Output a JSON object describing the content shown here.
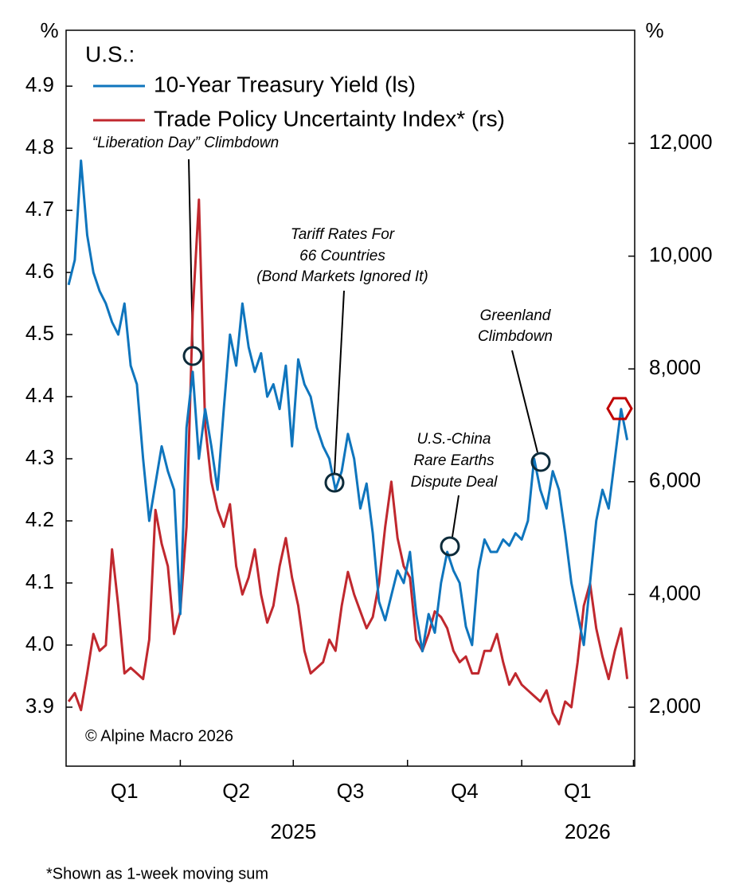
{
  "chart_data": {
    "type": "line",
    "legend_header": "U.S.:",
    "left_unit": "%",
    "right_unit": "%",
    "credit": "© Alpine Macro 2026",
    "footnote": "*Shown as 1-week moving sum",
    "x": [
      0,
      5,
      10,
      15,
      20,
      25,
      30,
      35,
      40,
      45,
      50,
      55,
      60,
      65,
      70,
      75,
      80,
      85,
      90,
      95,
      100,
      105,
      110,
      115,
      120,
      125,
      130,
      135,
      140,
      145,
      150,
      155,
      160,
      165,
      170,
      175,
      180,
      185,
      190,
      195,
      200,
      205,
      210,
      215,
      220,
      225,
      230,
      235,
      240,
      245,
      250,
      255,
      260,
      265,
      270,
      275,
      280,
      285,
      290,
      295,
      300,
      305,
      310,
      315,
      320,
      325,
      330,
      335,
      340,
      345,
      350,
      355,
      360,
      365,
      370,
      375,
      380,
      385,
      390,
      395,
      400,
      405,
      410,
      415,
      420,
      425,
      430,
      435,
      440,
      445,
      450
    ],
    "xlim": [
      -2,
      456
    ],
    "xticks": [
      90,
      181,
      273,
      365,
      455
    ],
    "x_labels": [
      {
        "value": 45,
        "label": "Q1"
      },
      {
        "value": 135,
        "label": "Q2"
      },
      {
        "value": 227,
        "label": "Q3"
      },
      {
        "value": 319,
        "label": "Q4"
      },
      {
        "value": 410,
        "label": "Q1"
      }
    ],
    "year_labels": [
      {
        "value": 181,
        "label": "2025"
      },
      {
        "value": 418,
        "label": "2026"
      }
    ],
    "ylim": [
      3.805,
      4.99
    ],
    "yticks": [
      3.9,
      {
        "value": 4,
        "label": "4.0"
      },
      4.1,
      4.2,
      4.3,
      4.4,
      4.5,
      4.6,
      4.7,
      4.8,
      4.9
    ],
    "y2lim": [
      955,
      14006
    ],
    "y2ticks": [
      {
        "value": 2000,
        "label": "2,000"
      },
      {
        "value": 4000,
        "label": "4,000"
      },
      {
        "value": 6000,
        "label": "6,000"
      },
      {
        "value": 8000,
        "label": "8,000"
      },
      {
        "value": 10000,
        "label": "10,000"
      },
      {
        "value": 12000,
        "label": "12,000"
      }
    ],
    "series": [
      {
        "name": "10-Year Treasury Yield (ls)",
        "color": "#0f75bd",
        "values": [
          4.58,
          4.62,
          4.78,
          4.66,
          4.6,
          4.57,
          4.55,
          4.52,
          4.5,
          4.55,
          4.45,
          4.42,
          4.3,
          4.2,
          4.26,
          4.32,
          4.28,
          4.25,
          4.05,
          4.35,
          4.44,
          4.3,
          4.38,
          4.32,
          4.25,
          4.38,
          4.5,
          4.45,
          4.55,
          4.48,
          4.44,
          4.47,
          4.4,
          4.42,
          4.38,
          4.45,
          4.32,
          4.46,
          4.42,
          4.4,
          4.35,
          4.32,
          4.3,
          4.25,
          4.28,
          4.34,
          4.3,
          4.22,
          4.26,
          4.18,
          4.07,
          4.04,
          4.08,
          4.12,
          4.1,
          4.15,
          4.05,
          3.99,
          4.05,
          4.02,
          4.1,
          4.15,
          4.12,
          4.1,
          4.03,
          4.0,
          4.12,
          4.17,
          4.15,
          4.15,
          4.17,
          4.16,
          4.18,
          4.17,
          4.2,
          4.3,
          4.25,
          4.22,
          4.28,
          4.25,
          4.18,
          4.1,
          4.05,
          4.0,
          4.1,
          4.2,
          4.25,
          4.22,
          4.3,
          4.38,
          4.33
        ]
      },
      {
        "name": "Trade Policy Uncertainty Index* (rs)",
        "color": "#c0282e",
        "axis": "y2",
        "values": [
          2100,
          2250,
          1950,
          2600,
          3300,
          3000,
          3100,
          4800,
          3800,
          2600,
          2700,
          2600,
          2500,
          3200,
          5500,
          4900,
          4500,
          3300,
          3700,
          5200,
          9000,
          11000,
          7000,
          6000,
          5500,
          5200,
          5600,
          4500,
          4000,
          4300,
          4800,
          4000,
          3500,
          3800,
          4500,
          5000,
          4300,
          3800,
          3000,
          2600,
          2700,
          2800,
          3200,
          3000,
          3800,
          4400,
          4000,
          3700,
          3400,
          3600,
          4200,
          5200,
          6000,
          5000,
          4500,
          4300,
          3200,
          3000,
          3300,
          3700,
          3600,
          3400,
          3000,
          2800,
          2900,
          2600,
          2600,
          3000,
          3000,
          3300,
          2800,
          2400,
          2600,
          2400,
          2300,
          2200,
          2100,
          2300,
          1900,
          1700,
          2100,
          2000,
          2800,
          3800,
          4200,
          3400,
          2900,
          2500,
          3000,
          3400,
          2500
        ]
      }
    ],
    "annotations": [
      {
        "lines": [
          "“Liberation Day” Climbdown"
        ]
      },
      {
        "lines": [
          "Tariff Rates For",
          "66 Countries",
          "(Bond Markets Ignored It)"
        ]
      },
      {
        "lines": [
          "U.S.-China",
          "Rare Earths",
          "Dispute Deal"
        ]
      },
      {
        "lines": [
          "Greenland",
          "Climbdown"
        ]
      }
    ]
  }
}
